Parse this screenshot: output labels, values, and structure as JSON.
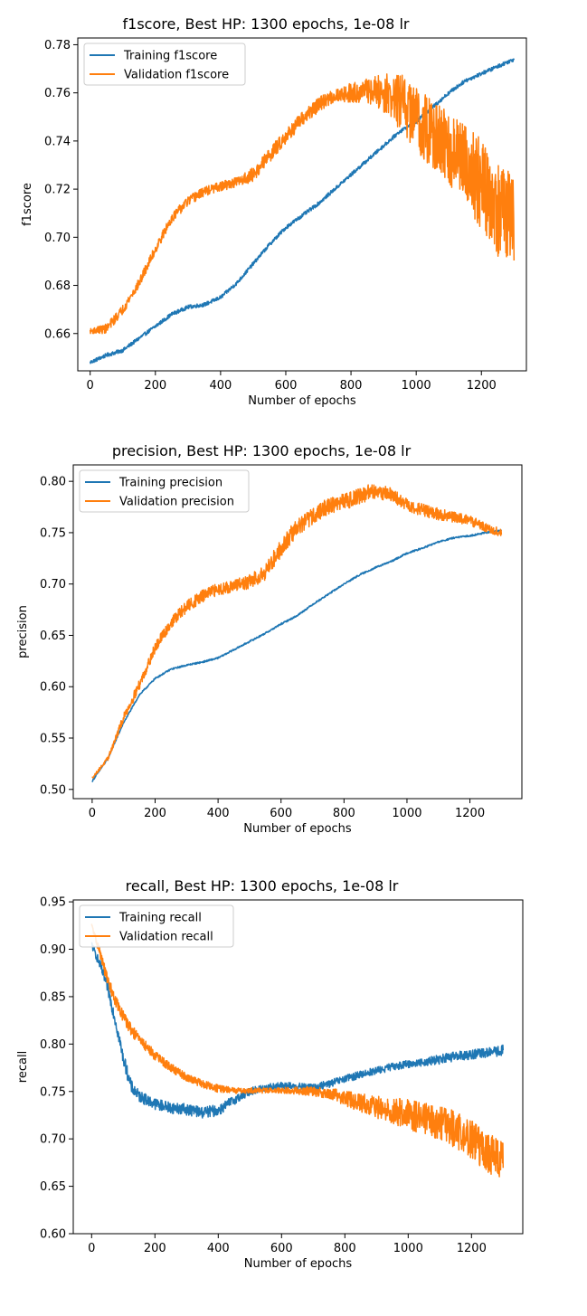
{
  "chart_data": [
    {
      "type": "line",
      "title": "f1score, Best HP: 1300 epochs, 1e-08 lr",
      "xlabel": "Number of epochs",
      "ylabel": "f1score",
      "xlim": [
        -38,
        1338
      ],
      "ylim": [
        0.6445,
        0.7828
      ],
      "xticks": [
        0,
        200,
        400,
        600,
        800,
        1000,
        1200
      ],
      "yticks": [
        0.66,
        0.68,
        0.7,
        0.72,
        0.74,
        0.76,
        0.78
      ],
      "ytick_labels": [
        "0.66",
        "0.68",
        "0.70",
        "0.72",
        "0.74",
        "0.76",
        "0.78"
      ],
      "grid": false,
      "legend_position": "top-left",
      "series": [
        {
          "name": "Training f1score",
          "color": "#1f77b4",
          "x": [
            0,
            50,
            100,
            150,
            200,
            250,
            300,
            350,
            400,
            450,
            500,
            550,
            600,
            650,
            700,
            750,
            800,
            850,
            900,
            950,
            1000,
            1050,
            1100,
            1150,
            1200,
            1250,
            1300
          ],
          "y": [
            0.648,
            0.651,
            0.653,
            0.658,
            0.663,
            0.668,
            0.671,
            0.672,
            0.675,
            0.681,
            0.689,
            0.697,
            0.704,
            0.709,
            0.714,
            0.72,
            0.726,
            0.732,
            0.738,
            0.744,
            0.748,
            0.754,
            0.76,
            0.765,
            0.768,
            0.771,
            0.774
          ]
        },
        {
          "name": "Validation f1score",
          "color": "#ff7f0e",
          "x": [
            0,
            50,
            100,
            150,
            200,
            250,
            300,
            350,
            400,
            450,
            500,
            550,
            600,
            650,
            700,
            750,
            800,
            850,
            900,
            950,
            1000,
            1050,
            1100,
            1150,
            1200,
            1250,
            1300
          ],
          "y": [
            0.661,
            0.662,
            0.67,
            0.681,
            0.695,
            0.708,
            0.715,
            0.719,
            0.721,
            0.723,
            0.726,
            0.734,
            0.742,
            0.749,
            0.755,
            0.759,
            0.76,
            0.761,
            0.76,
            0.756,
            0.75,
            0.742,
            0.736,
            0.731,
            0.722,
            0.712,
            0.705
          ],
          "noise": [
            0.001,
            0.002,
            0.002,
            0.002,
            0.002,
            0.002,
            0.002,
            0.002,
            0.002,
            0.002,
            0.003,
            0.003,
            0.003,
            0.003,
            0.003,
            0.003,
            0.004,
            0.005,
            0.008,
            0.012,
            0.014,
            0.015,
            0.016,
            0.017,
            0.019,
            0.02,
            0.02
          ]
        }
      ]
    },
    {
      "type": "line",
      "title": "precision, Best HP: 1300 epochs, 1e-08 lr",
      "xlabel": "Number of epochs",
      "ylabel": "precision",
      "xlim": [
        -60,
        1365
      ],
      "ylim": [
        0.491,
        0.816
      ],
      "xticks": [
        0,
        200,
        400,
        600,
        800,
        1000,
        1200
      ],
      "yticks": [
        0.5,
        0.55,
        0.6,
        0.65,
        0.7,
        0.75,
        0.8
      ],
      "ytick_labels": [
        "0.50",
        "0.55",
        "0.60",
        "0.65",
        "0.70",
        "0.75",
        "0.80"
      ],
      "grid": false,
      "legend_position": "top-left",
      "series": [
        {
          "name": "Training precision",
          "color": "#1f77b4",
          "x": [
            0,
            50,
            100,
            150,
            200,
            250,
            300,
            350,
            400,
            450,
            500,
            550,
            600,
            650,
            700,
            750,
            800,
            850,
            900,
            950,
            1000,
            1050,
            1100,
            1150,
            1200,
            1250,
            1300
          ],
          "y": [
            0.508,
            0.53,
            0.565,
            0.592,
            0.608,
            0.617,
            0.621,
            0.624,
            0.628,
            0.636,
            0.644,
            0.652,
            0.661,
            0.669,
            0.68,
            0.69,
            0.7,
            0.709,
            0.716,
            0.722,
            0.73,
            0.735,
            0.741,
            0.745,
            0.747,
            0.75,
            0.752
          ]
        },
        {
          "name": "Validation precision",
          "color": "#ff7f0e",
          "x": [
            0,
            50,
            100,
            150,
            200,
            250,
            300,
            350,
            400,
            450,
            500,
            550,
            600,
            650,
            700,
            750,
            800,
            850,
            900,
            950,
            1000,
            1050,
            1100,
            1150,
            1200,
            1250,
            1300
          ],
          "y": [
            0.511,
            0.53,
            0.57,
            0.602,
            0.638,
            0.662,
            0.678,
            0.688,
            0.695,
            0.698,
            0.702,
            0.712,
            0.735,
            0.755,
            0.766,
            0.776,
            0.78,
            0.786,
            0.791,
            0.787,
            0.777,
            0.772,
            0.768,
            0.765,
            0.762,
            0.755,
            0.75
          ],
          "noise": [
            0.001,
            0.002,
            0.004,
            0.005,
            0.005,
            0.006,
            0.006,
            0.006,
            0.006,
            0.006,
            0.007,
            0.008,
            0.009,
            0.009,
            0.008,
            0.008,
            0.008,
            0.008,
            0.008,
            0.007,
            0.006,
            0.006,
            0.006,
            0.005,
            0.005,
            0.004,
            0.004
          ]
        }
      ]
    },
    {
      "type": "line",
      "title": "recall, Best HP: 1300 epochs, 1e-08 lr",
      "xlabel": "Number of epochs",
      "ylabel": "recall",
      "xlim": [
        -58,
        1362
      ],
      "ylim": [
        0.6,
        0.952
      ],
      "xticks": [
        0,
        200,
        400,
        600,
        800,
        1000,
        1200
      ],
      "yticks": [
        0.6,
        0.65,
        0.7,
        0.75,
        0.8,
        0.85,
        0.9,
        0.95
      ],
      "ytick_labels": [
        "0.60",
        "0.65",
        "0.70",
        "0.75",
        "0.80",
        "0.85",
        "0.90",
        "0.95"
      ],
      "grid": false,
      "legend_position": "top-left",
      "series": [
        {
          "name": "Training recall",
          "color": "#1f77b4",
          "x": [
            0,
            25,
            50,
            75,
            100,
            125,
            150,
            200,
            250,
            300,
            350,
            400,
            450,
            500,
            550,
            600,
            650,
            700,
            750,
            800,
            850,
            900,
            950,
            1000,
            1050,
            1100,
            1150,
            1200,
            1250,
            1300
          ],
          "y": [
            0.905,
            0.885,
            0.86,
            0.825,
            0.785,
            0.755,
            0.745,
            0.737,
            0.733,
            0.731,
            0.728,
            0.73,
            0.741,
            0.75,
            0.754,
            0.756,
            0.755,
            0.754,
            0.758,
            0.763,
            0.768,
            0.772,
            0.776,
            0.779,
            0.781,
            0.784,
            0.787,
            0.789,
            0.791,
            0.793
          ],
          "noise": [
            0.004,
            0.005,
            0.006,
            0.007,
            0.007,
            0.007,
            0.006,
            0.006,
            0.006,
            0.006,
            0.006,
            0.006,
            0.005,
            0.004,
            0.004,
            0.004,
            0.004,
            0.004,
            0.004,
            0.004,
            0.004,
            0.004,
            0.004,
            0.004,
            0.004,
            0.005,
            0.005,
            0.005,
            0.005,
            0.006
          ]
        },
        {
          "name": "Validation recall",
          "color": "#ff7f0e",
          "x": [
            0,
            25,
            50,
            75,
            100,
            125,
            150,
            200,
            250,
            300,
            350,
            400,
            450,
            500,
            550,
            600,
            650,
            700,
            750,
            800,
            850,
            900,
            950,
            1000,
            1050,
            1100,
            1150,
            1200,
            1250,
            1300
          ],
          "y": [
            0.925,
            0.898,
            0.868,
            0.846,
            0.829,
            0.815,
            0.805,
            0.788,
            0.775,
            0.765,
            0.758,
            0.753,
            0.751,
            0.751,
            0.751,
            0.751,
            0.751,
            0.75,
            0.748,
            0.743,
            0.738,
            0.733,
            0.73,
            0.726,
            0.721,
            0.717,
            0.71,
            0.7,
            0.685,
            0.675
          ],
          "noise": [
            0.003,
            0.005,
            0.006,
            0.006,
            0.006,
            0.006,
            0.006,
            0.005,
            0.005,
            0.004,
            0.004,
            0.004,
            0.003,
            0.003,
            0.003,
            0.003,
            0.004,
            0.005,
            0.006,
            0.008,
            0.01,
            0.012,
            0.014,
            0.016,
            0.017,
            0.018,
            0.02,
            0.021,
            0.022,
            0.022
          ]
        }
      ]
    }
  ]
}
